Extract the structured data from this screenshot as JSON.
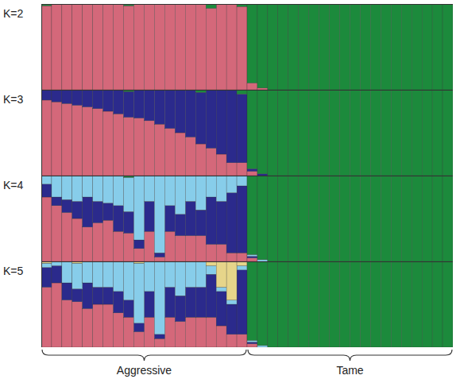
{
  "chart_data": [
    {
      "type": "bar",
      "title": "K=2",
      "stacked": true,
      "tick_labels": false,
      "ylim": [
        0,
        1
      ],
      "yticks": [],
      "categories": [
        null,
        null,
        null,
        null,
        null,
        null,
        null,
        null,
        null,
        null,
        null,
        null,
        null,
        null,
        null,
        null,
        null,
        null,
        null,
        null,
        null,
        null,
        null,
        null,
        null,
        null,
        null,
        null,
        null,
        null,
        null,
        null,
        null,
        null,
        null,
        null,
        null,
        null,
        null,
        null
      ],
      "series": [
        {
          "color": "#d4687a",
          "values": [
            0.98,
            1,
            1,
            1,
            1,
            1,
            1,
            1,
            0.98,
            1,
            1,
            1,
            1,
            1,
            1,
            1,
            0.95,
            1,
            1,
            0.97,
            0.08,
            0.02,
            0,
            0,
            0,
            0,
            0,
            0,
            0,
            0,
            0,
            0,
            0,
            0,
            0,
            0,
            0,
            0,
            0,
            0
          ]
        },
        {
          "color": "#1c8a3c",
          "values": [
            0.02,
            0,
            0,
            0,
            0,
            0,
            0,
            0,
            0.02,
            0,
            0,
            0,
            0,
            0,
            0,
            0,
            0.05,
            0,
            0,
            0.03,
            0.92,
            0.98,
            1,
            1,
            1,
            1,
            1,
            1,
            1,
            1,
            1,
            1,
            1,
            1,
            1,
            1,
            1,
            1,
            1,
            1
          ]
        }
      ]
    },
    {
      "type": "bar",
      "title": "K=3",
      "stacked": true,
      "tick_labels": false,
      "ylim": [
        0,
        1
      ],
      "yticks": [],
      "categories": [
        null,
        null,
        null,
        null,
        null,
        null,
        null,
        null,
        null,
        null,
        null,
        null,
        null,
        null,
        null,
        null,
        null,
        null,
        null,
        null,
        null,
        null,
        null,
        null,
        null,
        null,
        null,
        null,
        null,
        null,
        null,
        null,
        null,
        null,
        null,
        null,
        null,
        null,
        null,
        null
      ],
      "series": [
        {
          "color": "#d4687a",
          "values": [
            0.88,
            0.86,
            0.84,
            0.82,
            0.8,
            0.78,
            0.75,
            0.72,
            0.68,
            0.67,
            0.64,
            0.6,
            0.55,
            0.5,
            0.45,
            0.37,
            0.32,
            0.25,
            0.15,
            0.15,
            0.05,
            0,
            0,
            0,
            0,
            0,
            0,
            0,
            0,
            0,
            0,
            0,
            0,
            0,
            0,
            0,
            0,
            0,
            0,
            0
          ]
        },
        {
          "color": "#2b2a8c",
          "values": [
            0.12,
            0.14,
            0.16,
            0.18,
            0.2,
            0.22,
            0.25,
            0.28,
            0.3,
            0.33,
            0.36,
            0.4,
            0.45,
            0.5,
            0.55,
            0.6,
            0.68,
            0.75,
            0.85,
            0.8,
            0.03,
            0.02,
            0,
            0,
            0,
            0,
            0,
            0,
            0,
            0,
            0,
            0,
            0,
            0,
            0,
            0,
            0,
            0,
            0,
            0
          ]
        },
        {
          "color": "#1c8a3c",
          "values": [
            0,
            0,
            0,
            0,
            0,
            0,
            0,
            0,
            0.02,
            0,
            0,
            0,
            0,
            0,
            0,
            0.03,
            0,
            0,
            0,
            0.05,
            0.92,
            0.98,
            1,
            1,
            1,
            1,
            1,
            1,
            1,
            1,
            1,
            1,
            1,
            1,
            1,
            1,
            1,
            1,
            1,
            1
          ]
        }
      ]
    },
    {
      "type": "bar",
      "title": "K=4",
      "stacked": true,
      "tick_labels": false,
      "ylim": [
        0,
        1
      ],
      "yticks": [],
      "categories": [
        null,
        null,
        null,
        null,
        null,
        null,
        null,
        null,
        null,
        null,
        null,
        null,
        null,
        null,
        null,
        null,
        null,
        null,
        null,
        null,
        null,
        null,
        null,
        null,
        null,
        null,
        null,
        null,
        null,
        null,
        null,
        null,
        null,
        null,
        null,
        null,
        null,
        null,
        null,
        null
      ],
      "series": [
        {
          "color": "#d4687a",
          "values": [
            0.75,
            0.65,
            0.57,
            0.5,
            0.4,
            0.45,
            0.48,
            0.35,
            0.33,
            0.15,
            0.35,
            0.05,
            0.35,
            0.3,
            0.3,
            0.3,
            0.2,
            0.2,
            0.1,
            0.1,
            0.04,
            0,
            0,
            0,
            0,
            0,
            0,
            0,
            0,
            0,
            0,
            0,
            0,
            0,
            0,
            0,
            0,
            0,
            0,
            0
          ]
        },
        {
          "color": "#2b2a8c",
          "values": [
            0.15,
            0.1,
            0.15,
            0.2,
            0.35,
            0.25,
            0.2,
            0.3,
            0.25,
            0.1,
            0.35,
            0.05,
            0.3,
            0.25,
            0.4,
            0.3,
            0.55,
            0.5,
            0.7,
            0.78,
            0.02,
            0,
            0,
            0,
            0,
            0,
            0,
            0,
            0,
            0,
            0,
            0,
            0,
            0,
            0,
            0,
            0,
            0,
            0,
            0
          ]
        },
        {
          "color": "#87cdea",
          "values": [
            0.1,
            0.25,
            0.28,
            0.3,
            0.25,
            0.3,
            0.32,
            0.35,
            0.4,
            0.75,
            0.3,
            0.9,
            0.35,
            0.45,
            0.3,
            0.4,
            0.25,
            0.3,
            0.2,
            0.12,
            0.02,
            0.02,
            0,
            0,
            0,
            0,
            0,
            0,
            0,
            0,
            0,
            0,
            0,
            0,
            0,
            0,
            0,
            0,
            0,
            0
          ]
        },
        {
          "color": "#1c8a3c",
          "values": [
            0,
            0,
            0,
            0,
            0,
            0,
            0,
            0,
            0.02,
            0,
            0,
            0,
            0,
            0,
            0,
            0,
            0,
            0,
            0,
            0,
            0.92,
            0.98,
            1,
            1,
            1,
            1,
            1,
            1,
            1,
            1,
            1,
            1,
            1,
            1,
            1,
            1,
            1,
            1,
            1,
            1
          ]
        }
      ]
    },
    {
      "type": "bar",
      "title": "K=5",
      "stacked": true,
      "tick_labels": false,
      "ylim": [
        0,
        1
      ],
      "yticks": [],
      "categories": [
        null,
        null,
        null,
        null,
        null,
        null,
        null,
        null,
        null,
        null,
        null,
        null,
        null,
        null,
        null,
        null,
        null,
        null,
        null,
        null,
        null,
        null,
        null,
        null,
        null,
        null,
        null,
        null,
        null,
        null,
        null,
        null,
        null,
        null,
        null,
        null,
        null,
        null,
        null,
        null
      ],
      "groups": [
        "Aggressive",
        "Aggressive",
        "Aggressive",
        "Aggressive",
        "Aggressive",
        "Aggressive",
        "Aggressive",
        "Aggressive",
        "Aggressive",
        "Aggressive",
        "Aggressive",
        "Aggressive",
        "Aggressive",
        "Aggressive",
        "Aggressive",
        "Aggressive",
        "Aggressive",
        "Aggressive",
        "Aggressive",
        "Aggressive",
        "Tame",
        "Tame",
        "Tame",
        "Tame",
        "Tame",
        "Tame",
        "Tame",
        "Tame",
        "Tame",
        "Tame",
        "Tame",
        "Tame",
        "Tame",
        "Tame",
        "Tame",
        "Tame",
        "Tame",
        "Tame",
        "Tame",
        "Tame"
      ],
      "series": [
        {
          "color": "#d4687a",
          "values": [
            0.7,
            0.75,
            0.55,
            0.53,
            0.45,
            0.5,
            0.5,
            0.4,
            0.35,
            0.18,
            0.35,
            0.1,
            0.35,
            0.3,
            0.35,
            0.35,
            0.35,
            0.25,
            0.15,
            0.15,
            0.04,
            0,
            0,
            0,
            0,
            0,
            0,
            0,
            0,
            0,
            0,
            0,
            0,
            0,
            0,
            0,
            0,
            0,
            0,
            0
          ]
        },
        {
          "color": "#2b2a8c",
          "values": [
            0.23,
            0.2,
            0.2,
            0.15,
            0.3,
            0.2,
            0.2,
            0.25,
            0.2,
            0.1,
            0.3,
            0.05,
            0.35,
            0.3,
            0.35,
            0.35,
            0.5,
            0.4,
            0.35,
            0.75,
            0.02,
            0,
            0,
            0,
            0,
            0,
            0,
            0,
            0,
            0,
            0,
            0,
            0,
            0,
            0,
            0,
            0,
            0,
            0,
            0
          ]
        },
        {
          "color": "#87cdea",
          "values": [
            0.05,
            0.05,
            0.25,
            0.3,
            0.25,
            0.3,
            0.3,
            0.35,
            0.45,
            0.7,
            0.35,
            0.85,
            0.3,
            0.4,
            0.3,
            0.3,
            0.1,
            0.05,
            0.05,
            0.05,
            0.02,
            0.02,
            0,
            0,
            0,
            0,
            0,
            0,
            0,
            0,
            0,
            0,
            0,
            0,
            0,
            0,
            0,
            0,
            0,
            0
          ]
        },
        {
          "color": "#e6d58a",
          "values": [
            0.02,
            0,
            0,
            0.02,
            0,
            0,
            0,
            0,
            0,
            0.02,
            0,
            0,
            0,
            0,
            0,
            0,
            0.05,
            0.3,
            0.45,
            0.05,
            0,
            0,
            0,
            0,
            0,
            0,
            0,
            0,
            0,
            0,
            0,
            0,
            0,
            0,
            0,
            0,
            0,
            0,
            0,
            0
          ]
        },
        {
          "color": "#1c8a3c",
          "values": [
            0,
            0,
            0,
            0,
            0,
            0,
            0,
            0,
            0,
            0,
            0,
            0,
            0,
            0,
            0,
            0,
            0,
            0,
            0,
            0,
            0.92,
            0.98,
            1,
            1,
            1,
            1,
            1,
            1,
            1,
            1,
            1,
            1,
            1,
            1,
            1,
            1,
            1,
            1,
            1,
            1
          ]
        }
      ]
    }
  ]
}
